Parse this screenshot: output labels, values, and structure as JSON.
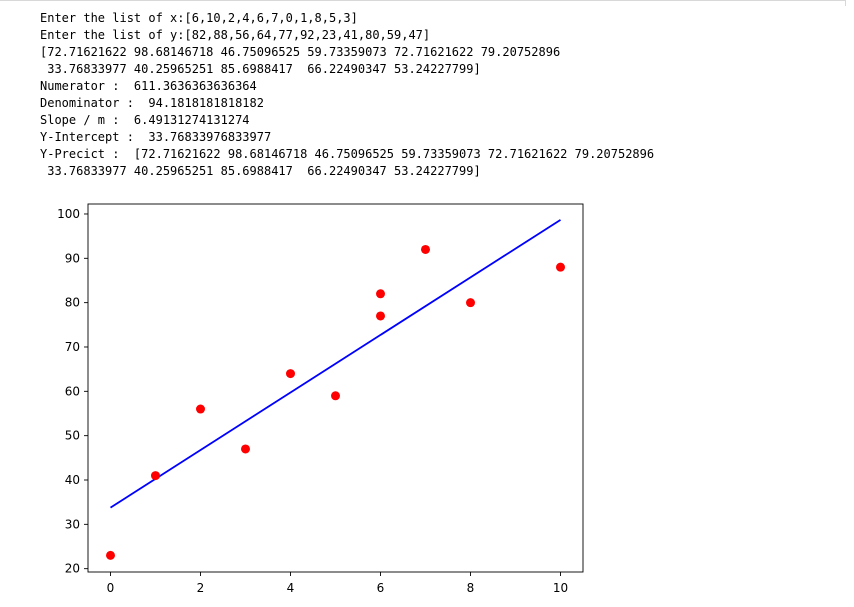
{
  "output": {
    "lines": [
      "Enter the list of x:[6,10,2,4,6,7,0,1,8,5,3]",
      "Enter the list of y:[82,88,56,64,77,92,23,41,80,59,47]",
      "[72.71621622 98.68146718 46.75096525 59.73359073 72.71621622 79.20752896",
      " 33.76833977 40.25965251 85.6988417  66.22490347 53.24227799]",
      "Numerator :  611.3636363636364",
      "Denominator :  94.1818181818182",
      "Slope / m :  6.49131274131274",
      "Y-Intercept :  33.76833976833977",
      "Y-Precict :  [72.71621622 98.68146718 46.75096525 59.73359073 72.71621622 79.20752896",
      " 33.76833977 40.25965251 85.6988417  66.22490347 53.24227799]"
    ]
  },
  "chart_data": {
    "type": "scatter",
    "title": "",
    "xlabel": "",
    "ylabel": "",
    "xlim": [
      -0.5,
      10.5
    ],
    "ylim": [
      19.25,
      102.25
    ],
    "x_ticks": [
      0,
      2,
      4,
      6,
      8,
      10
    ],
    "y_ticks": [
      20,
      30,
      40,
      50,
      60,
      70,
      80,
      90,
      100
    ],
    "grid": false,
    "legend": "none",
    "series": [
      {
        "kind": "scatter",
        "color": "#ff0000",
        "x": [
          6,
          10,
          2,
          4,
          6,
          7,
          0,
          1,
          8,
          5,
          3
        ],
        "y": [
          82,
          88,
          56,
          64,
          77,
          92,
          23,
          41,
          80,
          59,
          47
        ]
      },
      {
        "kind": "line",
        "color": "#0000ff",
        "x": [
          0,
          10
        ],
        "y": [
          33.76833977,
          98.68146718
        ]
      }
    ]
  }
}
